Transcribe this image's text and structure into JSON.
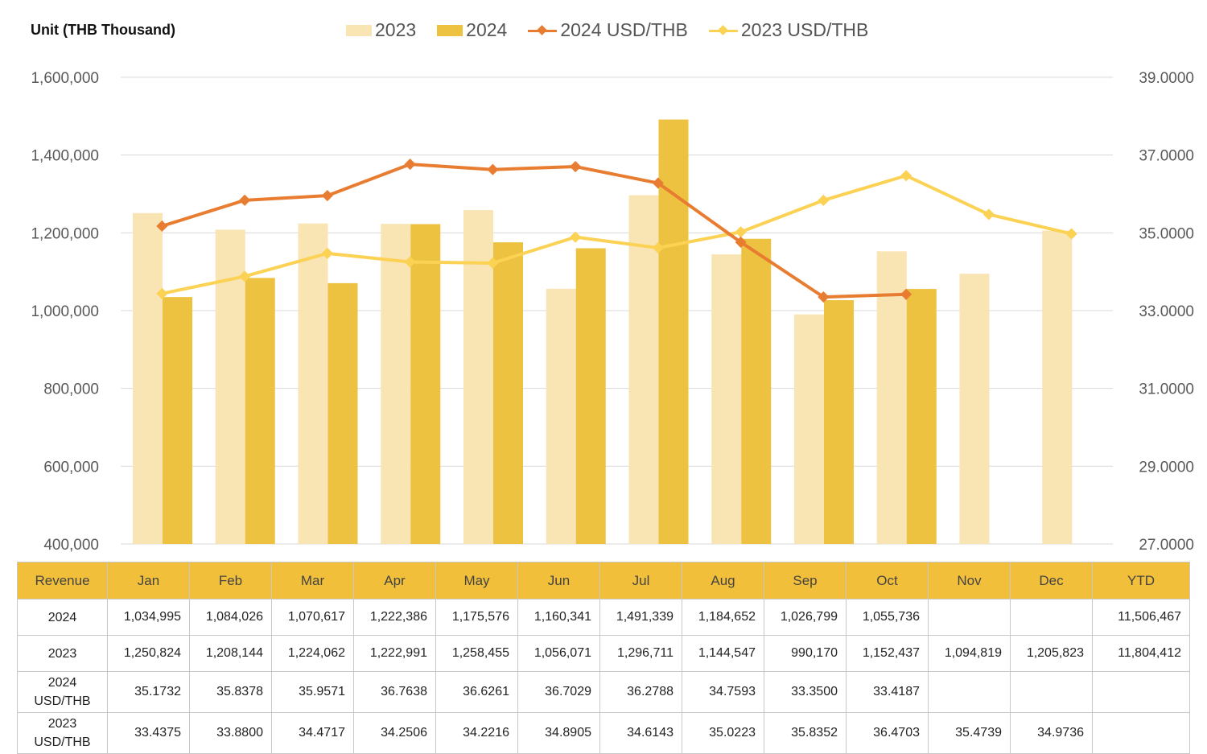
{
  "unit_label": "Unit (THB  Thousand)",
  "legend": [
    {
      "label": "2023",
      "kind": "bar",
      "color": "#f9e4b4"
    },
    {
      "label": "2024",
      "kind": "bar",
      "color": "#edc240"
    },
    {
      "label": "2024 USD/THB",
      "kind": "line",
      "color": "#e87d31"
    },
    {
      "label": "2023 USD/THB",
      "kind": "line",
      "color": "#fbd253"
    }
  ],
  "chart_data": {
    "type": "bar",
    "categories": [
      "Jan",
      "Feb",
      "Mar",
      "Apr",
      "May",
      "Jun",
      "Jul",
      "Aug",
      "Sep",
      "Oct",
      "Nov",
      "Dec"
    ],
    "y_left": {
      "ylim": [
        400000,
        1600000
      ],
      "ticks": [
        "400,000",
        "600,000",
        "800,000",
        "1,000,000",
        "1,200,000",
        "1,400,000",
        "1,600,000"
      ]
    },
    "y_right": {
      "ylim": [
        27,
        39
      ],
      "ticks": [
        "27.0000",
        "29.0000",
        "31.0000",
        "33.0000",
        "35.0000",
        "37.0000",
        "39.0000"
      ]
    },
    "grid": true,
    "legend_position": "top",
    "series": [
      {
        "name": "2023",
        "type": "bar",
        "axis": "left",
        "color": "#f9e4b4",
        "values": [
          1250824,
          1208144,
          1224062,
          1222991,
          1258455,
          1056071,
          1296711,
          1144547,
          990170,
          1152437,
          1094819,
          1205823
        ]
      },
      {
        "name": "2024",
        "type": "bar",
        "axis": "left",
        "color": "#edc240",
        "values": [
          1034995,
          1084026,
          1070617,
          1222386,
          1175576,
          1160341,
          1491339,
          1184652,
          1026799,
          1055736,
          null,
          null
        ]
      },
      {
        "name": "2024 USD/THB",
        "type": "line",
        "axis": "right",
        "color": "#e87d31",
        "values": [
          35.1732,
          35.8378,
          35.9571,
          36.7638,
          36.6261,
          36.7029,
          36.2788,
          34.7593,
          33.35,
          33.4187,
          null,
          null
        ]
      },
      {
        "name": "2023 USD/THB",
        "type": "line",
        "axis": "right",
        "color": "#fbd253",
        "values": [
          33.4375,
          33.88,
          34.4717,
          34.2506,
          34.2216,
          34.8905,
          34.6143,
          35.0223,
          35.8352,
          36.4703,
          35.4739,
          34.9736
        ]
      }
    ]
  },
  "table": {
    "header": [
      "Revenue",
      "Jan",
      "Feb",
      "Mar",
      "Apr",
      "May",
      "Jun",
      "Jul",
      "Aug",
      "Sep",
      "Oct",
      "Nov",
      "Dec",
      "YTD"
    ],
    "rows": [
      {
        "label": [
          "2024"
        ],
        "cells": [
          "1,034,995",
          "1,084,026",
          "1,070,617",
          "1,222,386",
          "1,175,576",
          "1,160,341",
          "1,491,339",
          "1,184,652",
          "1,026,799",
          "1,055,736",
          "",
          "",
          "11,506,467"
        ]
      },
      {
        "label": [
          "2023"
        ],
        "cells": [
          "1,250,824",
          "1,208,144",
          "1,224,062",
          "1,222,991",
          "1,258,455",
          "1,056,071",
          "1,296,711",
          "1,144,547",
          "990,170",
          "1,152,437",
          "1,094,819",
          "1,205,823",
          "11,804,412"
        ]
      },
      {
        "label": [
          "2024",
          "USD/THB"
        ],
        "cells": [
          "35.1732",
          "35.8378",
          "35.9571",
          "36.7638",
          "36.6261",
          "36.7029",
          "36.2788",
          "34.7593",
          "33.3500",
          "33.4187",
          "",
          "",
          ""
        ]
      },
      {
        "label": [
          "2023",
          "USD/THB"
        ],
        "cells": [
          "33.4375",
          "33.8800",
          "34.4717",
          "34.2506",
          "34.2216",
          "34.8905",
          "34.6143",
          "35.0223",
          "35.8352",
          "36.4703",
          "35.4739",
          "34.9736",
          ""
        ]
      }
    ]
  }
}
